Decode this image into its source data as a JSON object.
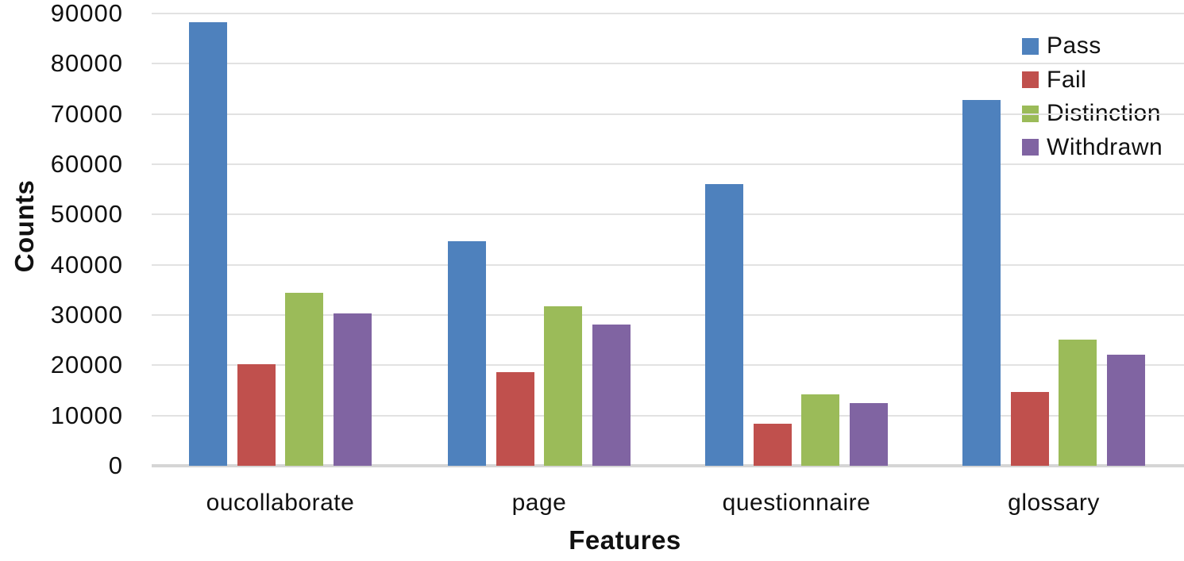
{
  "chart_data": {
    "type": "bar",
    "title": "",
    "xlabel": "Features",
    "ylabel": "Counts",
    "categories": [
      "oucollaborate",
      "page",
      "questionnaire",
      "glossary"
    ],
    "series": [
      {
        "name": "Pass",
        "color": "#4E81BD",
        "values": [
          88300,
          44700,
          56100,
          72800
        ]
      },
      {
        "name": "Fail",
        "color": "#C0504D",
        "values": [
          20200,
          18600,
          8400,
          14700
        ]
      },
      {
        "name": "Distinction",
        "color": "#9BBB59",
        "values": [
          34400,
          31700,
          14200,
          25100
        ]
      },
      {
        "name": "Withdrawn",
        "color": "#8064A2",
        "values": [
          30300,
          28100,
          12500,
          22100
        ]
      }
    ],
    "ylim": [
      0,
      90000
    ],
    "y_tick_step": 10000,
    "y_ticks": [
      "0",
      "10000",
      "20000",
      "30000",
      "40000",
      "50000",
      "60000",
      "70000",
      "80000",
      "90000"
    ],
    "grid": true,
    "legend_position": "top-right",
    "gridline_color": "#e2e2e2",
    "axis_line_color": "#d5d5d5",
    "text_color": "#111111"
  }
}
